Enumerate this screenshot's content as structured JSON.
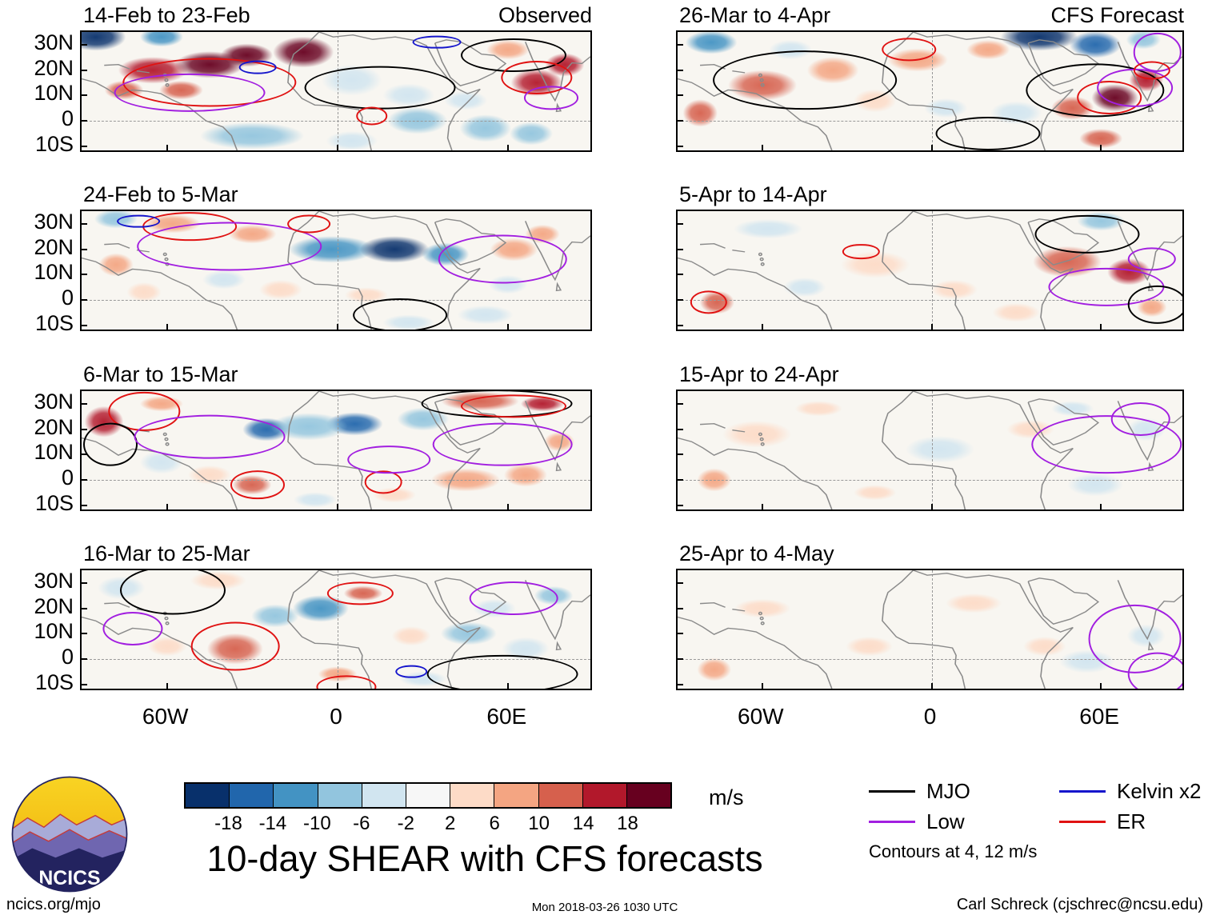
{
  "chart_data": {
    "type": "heatmap",
    "description": "Eight longitude-latitude map panels of 10-day mean wind shear anomalies (m/s). Left column observed, right column CFS forecast. Shaded per colorbar; equatorial wave contours (MJO, Low, Kelvin, ER) overlaid at 4 and 12 m/s.",
    "lon_range_deg": [
      -90,
      90
    ],
    "lat_range_deg": [
      -13,
      35
    ],
    "x_ticks": [
      "60W",
      "0",
      "60E"
    ],
    "x_tick_lons": [
      -60,
      0,
      60
    ],
    "y_ticks": [
      "30N",
      "20N",
      "10N",
      "0",
      "10S"
    ],
    "y_tick_lats": [
      30,
      20,
      10,
      0,
      -10
    ],
    "title": "10-day SHEAR with CFS forecasts",
    "colorbar": {
      "unit": "m/s",
      "tick_labels": [
        "-18",
        "-14",
        "-10",
        "-6",
        "-2",
        "2",
        "6",
        "10",
        "14",
        "18"
      ],
      "levels": [
        -18,
        -14,
        -10,
        -6,
        -2,
        2,
        6,
        10,
        14,
        18
      ],
      "colors": [
        "#08306b",
        "#2166ac",
        "#4393c3",
        "#92c5de",
        "#d1e5f0",
        "#f7f7f7",
        "#fddbc7",
        "#f4a582",
        "#d6604d",
        "#b2182b",
        "#67001f"
      ]
    },
    "legend": [
      {
        "label": "MJO",
        "wave": "MJO",
        "color": "#000000"
      },
      {
        "label": "Kelvin x2",
        "wave": "Kelvin",
        "color": "#1515cc"
      },
      {
        "label": "Low",
        "wave": "Low",
        "color": "#a21fe0"
      },
      {
        "label": "ER",
        "wave": "ER",
        "color": "#e01212"
      }
    ],
    "contour_note": "Contours at 4, 12 m/s",
    "anomaly_format": "[lon_deg, lat_deg, value_m_s, rx_deg, ry_deg]",
    "contour_format": "[wave, lon_deg, lat_deg, rx_deg, ry_deg]",
    "panels": [
      {
        "title": "14-Feb to 23-Feb",
        "corner_label": "Observed",
        "kind": "observed",
        "anomalies": [
          [
            -85,
            33,
            -22,
            14,
            7
          ],
          [
            -62,
            33,
            -14,
            10,
            5
          ],
          [
            -65,
            20,
            14,
            16,
            7
          ],
          [
            -45,
            22,
            20,
            16,
            7
          ],
          [
            -32,
            26,
            22,
            12,
            6
          ],
          [
            -12,
            27,
            20,
            14,
            8
          ],
          [
            -75,
            12,
            10,
            9,
            5
          ],
          [
            -55,
            12,
            12,
            10,
            5
          ],
          [
            5,
            16,
            -4,
            14,
            8
          ],
          [
            25,
            10,
            -4,
            12,
            6
          ],
          [
            70,
            15,
            14,
            12,
            7
          ],
          [
            80,
            22,
            16,
            9,
            6
          ],
          [
            60,
            28,
            8,
            10,
            5
          ],
          [
            -30,
            -6,
            -8,
            24,
            7
          ],
          [
            5,
            -8,
            -6,
            12,
            5
          ],
          [
            28,
            0,
            -8,
            14,
            7
          ],
          [
            52,
            -3,
            -10,
            12,
            7
          ],
          [
            68,
            -5,
            -8,
            10,
            6
          ],
          [
            45,
            8,
            -6,
            10,
            5
          ]
        ],
        "contours": [
          [
            "ER",
            -45,
            15,
            30,
            9
          ],
          [
            "Low",
            -52,
            11,
            26,
            7
          ],
          [
            "MJO",
            15,
            13,
            26,
            8
          ],
          [
            "ER",
            12,
            2,
            5,
            3
          ],
          [
            "Kelvin",
            -28,
            21,
            6,
            2
          ],
          [
            "MJO",
            62,
            26,
            18,
            6
          ],
          [
            "ER",
            70,
            17,
            12,
            6
          ],
          [
            "Low",
            75,
            9,
            9,
            4
          ],
          [
            "Kelvin",
            35,
            31,
            8,
            2
          ]
        ]
      },
      {
        "title": "26-Mar to 4-Apr",
        "corner_label": "CFS Forecast",
        "kind": "forecast",
        "anomalies": [
          [
            -78,
            31,
            -12,
            12,
            6
          ],
          [
            -50,
            28,
            -6,
            10,
            5
          ],
          [
            -82,
            3,
            10,
            8,
            7
          ],
          [
            -60,
            14,
            10,
            16,
            8
          ],
          [
            -35,
            20,
            8,
            12,
            7
          ],
          [
            -5,
            24,
            6,
            14,
            6
          ],
          [
            20,
            28,
            6,
            10,
            5
          ],
          [
            38,
            33,
            -22,
            18,
            7
          ],
          [
            58,
            30,
            -16,
            12,
            7
          ],
          [
            75,
            32,
            -10,
            8,
            5
          ],
          [
            65,
            9,
            22,
            11,
            7
          ],
          [
            76,
            16,
            16,
            8,
            6
          ],
          [
            50,
            5,
            10,
            10,
            6
          ],
          [
            30,
            3,
            -4,
            12,
            6
          ],
          [
            5,
            5,
            -3,
            10,
            5
          ],
          [
            60,
            -7,
            12,
            10,
            5
          ],
          [
            -20,
            8,
            4,
            10,
            6
          ]
        ],
        "contours": [
          [
            "MJO",
            -45,
            16,
            32,
            11
          ],
          [
            "ER",
            -8,
            28,
            9,
            4
          ],
          [
            "MJO",
            58,
            12,
            24,
            10
          ],
          [
            "ER",
            63,
            9,
            11,
            6
          ],
          [
            "Low",
            72,
            13,
            13,
            7
          ],
          [
            "Low",
            80,
            27,
            8,
            7
          ],
          [
            "ER",
            78,
            20,
            6,
            3
          ],
          [
            "MJO",
            20,
            -5,
            18,
            6
          ]
        ]
      },
      {
        "title": "24-Feb to 5-Mar",
        "corner_label": "",
        "kind": "observed",
        "anomalies": [
          [
            -78,
            32,
            -10,
            10,
            5
          ],
          [
            -58,
            30,
            6,
            13,
            5
          ],
          [
            -30,
            26,
            6,
            11,
            5
          ],
          [
            -2,
            20,
            -14,
            20,
            7
          ],
          [
            20,
            20,
            -22,
            16,
            7
          ],
          [
            38,
            18,
            -12,
            11,
            6
          ],
          [
            -78,
            14,
            8,
            8,
            6
          ],
          [
            -68,
            3,
            4,
            8,
            5
          ],
          [
            -20,
            4,
            4,
            10,
            5
          ],
          [
            10,
            2,
            3,
            10,
            4
          ],
          [
            62,
            20,
            8,
            11,
            6
          ],
          [
            72,
            26,
            8,
            8,
            5
          ],
          [
            52,
            -6,
            -6,
            13,
            5
          ],
          [
            25,
            -9,
            -5,
            12,
            4
          ],
          [
            -40,
            8,
            -4,
            10,
            5
          ],
          [
            60,
            6,
            -4,
            9,
            5
          ]
        ],
        "contours": [
          [
            "ER",
            -52,
            29,
            16,
            5
          ],
          [
            "Low",
            -38,
            21,
            32,
            9
          ],
          [
            "Kelvin",
            -70,
            31,
            7,
            2
          ],
          [
            "Low",
            58,
            16,
            22,
            9
          ],
          [
            "MJO",
            22,
            -6,
            16,
            6
          ],
          [
            "ER",
            -10,
            30,
            7,
            3
          ]
        ]
      },
      {
        "title": "5-Apr to 14-Apr",
        "corner_label": "",
        "kind": "forecast",
        "anomalies": [
          [
            -58,
            28,
            -4,
            16,
            5
          ],
          [
            -20,
            14,
            4,
            16,
            7
          ],
          [
            -76,
            -1,
            10,
            8,
            6
          ],
          [
            8,
            4,
            3,
            11,
            5
          ],
          [
            48,
            15,
            10,
            16,
            8
          ],
          [
            70,
            11,
            14,
            10,
            7
          ],
          [
            60,
            31,
            -8,
            11,
            5
          ],
          [
            30,
            -5,
            4,
            11,
            5
          ],
          [
            78,
            -3,
            6,
            7,
            5
          ],
          [
            -45,
            5,
            -3,
            10,
            5
          ]
        ],
        "contours": [
          [
            "ER",
            -25,
            19,
            6,
            2.5
          ],
          [
            "ER",
            -79,
            -1,
            6,
            4
          ],
          [
            "MJO",
            55,
            26,
            18,
            7
          ],
          [
            "Low",
            62,
            5,
            20,
            7
          ],
          [
            "MJO",
            80,
            -2,
            10,
            7
          ],
          [
            "Low",
            78,
            16,
            8,
            4
          ]
        ]
      },
      {
        "title": "6-Mar to 15-Mar",
        "corner_label": "",
        "kind": "observed",
        "anomalies": [
          [
            -82,
            23,
            14,
            9,
            8
          ],
          [
            -62,
            30,
            6,
            10,
            4
          ],
          [
            -25,
            20,
            -18,
            11,
            6
          ],
          [
            6,
            22,
            -16,
            13,
            6
          ],
          [
            -10,
            21,
            -10,
            18,
            7
          ],
          [
            30,
            24,
            -8,
            12,
            6
          ],
          [
            50,
            31,
            12,
            18,
            5
          ],
          [
            72,
            30,
            14,
            10,
            4
          ],
          [
            -30,
            -2,
            10,
            9,
            5
          ],
          [
            -45,
            2,
            4,
            10,
            5
          ],
          [
            45,
            0,
            8,
            16,
            6
          ],
          [
            66,
            2,
            8,
            10,
            6
          ],
          [
            20,
            -6,
            4,
            10,
            4
          ],
          [
            -62,
            7,
            -4,
            10,
            6
          ],
          [
            78,
            15,
            6,
            7,
            5
          ],
          [
            -8,
            -8,
            -4,
            10,
            4
          ]
        ],
        "contours": [
          [
            "ER",
            -68,
            27,
            12,
            7
          ],
          [
            "MJO",
            -80,
            14,
            9,
            8
          ],
          [
            "Low",
            -45,
            17,
            26,
            8
          ],
          [
            "ER",
            -28,
            -2,
            9,
            5
          ],
          [
            "ER",
            16,
            -1,
            6,
            4
          ],
          [
            "MJO",
            56,
            30,
            26,
            5
          ],
          [
            "ER",
            62,
            29,
            18,
            4
          ],
          [
            "Low",
            58,
            14,
            24,
            8
          ],
          [
            "Low",
            18,
            8,
            14,
            5
          ]
        ]
      },
      {
        "title": "15-Apr to 24-Apr",
        "corner_label": "",
        "kind": "forecast",
        "anomalies": [
          [
            -62,
            18,
            4,
            16,
            7
          ],
          [
            -77,
            0,
            6,
            8,
            6
          ],
          [
            -40,
            28,
            3,
            11,
            4
          ],
          [
            3,
            12,
            -3,
            16,
            7
          ],
          [
            35,
            20,
            3,
            11,
            5
          ],
          [
            58,
            -2,
            -4,
            13,
            6
          ],
          [
            76,
            20,
            -4,
            9,
            6
          ],
          [
            -20,
            -5,
            3,
            10,
            4
          ],
          [
            50,
            28,
            -3,
            10,
            4
          ]
        ],
        "contours": [
          [
            "Low",
            62,
            14,
            26,
            11
          ],
          [
            "Low",
            74,
            24,
            10,
            6
          ]
        ]
      },
      {
        "title": "16-Mar to 25-Mar",
        "corner_label": "",
        "kind": "observed",
        "anomalies": [
          [
            -76,
            28,
            -6,
            11,
            6
          ],
          [
            -42,
            31,
            4,
            13,
            5
          ],
          [
            -6,
            20,
            -12,
            13,
            7
          ],
          [
            -22,
            17,
            -8,
            11,
            6
          ],
          [
            -36,
            4,
            10,
            13,
            8
          ],
          [
            9,
            26,
            10,
            9,
            4
          ],
          [
            26,
            9,
            4,
            9,
            5
          ],
          [
            46,
            10,
            -8,
            13,
            6
          ],
          [
            66,
            4,
            -6,
            11,
            6
          ],
          [
            76,
            25,
            -8,
            9,
            5
          ],
          [
            30,
            -8,
            -6,
            11,
            4
          ],
          [
            0,
            -6,
            6,
            9,
            4
          ],
          [
            55,
            20,
            -5,
            10,
            5
          ],
          [
            -60,
            5,
            4,
            9,
            5
          ]
        ],
        "contours": [
          [
            "MJO",
            -58,
            27,
            18,
            9
          ],
          [
            "ER",
            -36,
            5,
            15,
            9
          ],
          [
            "ER",
            8,
            26,
            11,
            4
          ],
          [
            "Low",
            -72,
            12,
            10,
            6
          ],
          [
            "MJO",
            58,
            -6,
            26,
            7
          ],
          [
            "Low",
            62,
            24,
            15,
            6
          ],
          [
            "Kelvin",
            26,
            -5,
            5,
            2
          ],
          [
            "ER",
            3,
            -11,
            10,
            4
          ]
        ]
      },
      {
        "title": "25-Apr to 4-May",
        "corner_label": "",
        "kind": "forecast",
        "anomalies": [
          [
            -77,
            -4,
            6,
            8,
            6
          ],
          [
            -60,
            20,
            3,
            13,
            5
          ],
          [
            15,
            22,
            3,
            13,
            5
          ],
          [
            55,
            -1,
            -4,
            13,
            6
          ],
          [
            76,
            9,
            -3,
            9,
            6
          ],
          [
            -22,
            5,
            2,
            11,
            5
          ],
          [
            40,
            5,
            2,
            10,
            5
          ]
        ],
        "contours": [
          [
            "Low",
            72,
            8,
            16,
            13
          ],
          [
            "Low",
            80,
            -6,
            10,
            8
          ]
        ]
      }
    ]
  },
  "branding": {
    "logo_text": "NCICS"
  },
  "footer": {
    "left": "ncics.org/mjo",
    "center": "Mon 2018-03-26 1030 UTC",
    "right": "Carl Schreck (cjschrec@ncsu.edu)"
  }
}
